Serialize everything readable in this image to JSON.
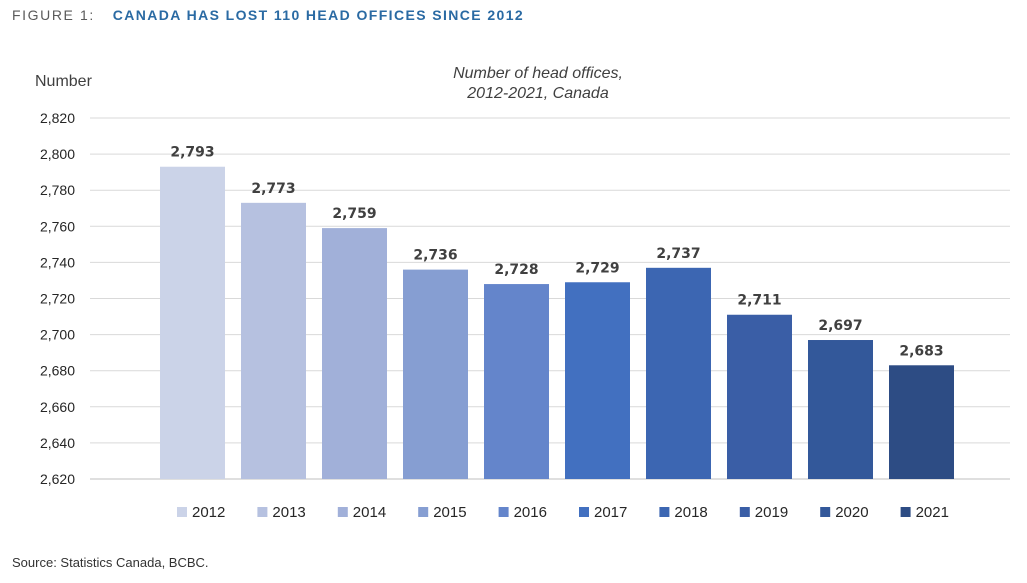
{
  "figure": {
    "label": "FIGURE 1:",
    "title": "CANADA HAS LOST 110 HEAD OFFICES SINCE 2012",
    "source": "Source:  Statistics Canada, BCBC."
  },
  "chart_data": {
    "type": "bar",
    "title": "Number of head offices,",
    "subtitle": "2012-2021, Canada",
    "xlabel": "",
    "ylabel": "Number",
    "ylim": [
      2620,
      2820
    ],
    "y_ticks": [
      "2,620",
      "2,640",
      "2,660",
      "2,680",
      "2,700",
      "2,720",
      "2,740",
      "2,760",
      "2,780",
      "2,800",
      "2,820"
    ],
    "grid": true,
    "legend": "bottom",
    "categories": [
      "2012",
      "2013",
      "2014",
      "2015",
      "2016",
      "2017",
      "2018",
      "2019",
      "2020",
      "2021"
    ],
    "values": [
      2793,
      2773,
      2759,
      2736,
      2728,
      2729,
      2737,
      2711,
      2697,
      2683
    ],
    "data_labels": [
      "2,793",
      "2,773",
      "2,759",
      "2,736",
      "2,728",
      "2,729",
      "2,737",
      "2,711",
      "2,697",
      "2,683"
    ],
    "colors": [
      "#cbd3e8",
      "#b6c1e0",
      "#a1b0d9",
      "#869ed2",
      "#6485cb",
      "#4270c0",
      "#3c66b2",
      "#3a5ea6",
      "#33589a",
      "#2d4c84"
    ]
  }
}
